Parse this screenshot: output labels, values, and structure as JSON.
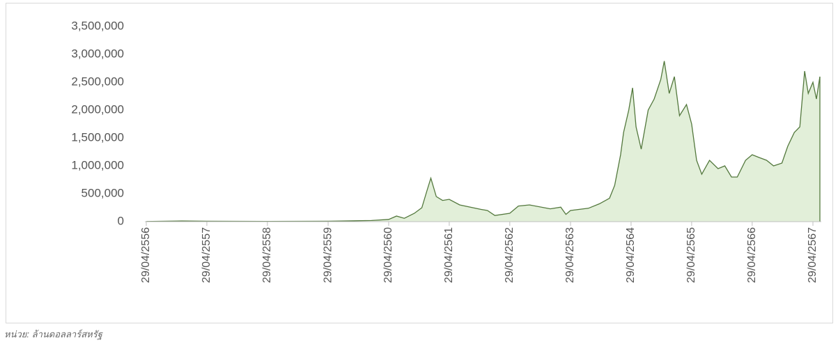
{
  "chart_data": {
    "type": "area",
    "note": "หน่วย: ล้านดอลลาร์สหรัฐ",
    "x": [
      "29/04/2556",
      "29/11/2556",
      "29/04/2557",
      "29/04/2558",
      "29/04/2559",
      "15/01/2560",
      "29/04/2560",
      "15/06/2560",
      "01/08/2560",
      "01/10/2560",
      "15/11/2560",
      "15/12/2560",
      "08/01/2561",
      "10/02/2561",
      "20/03/2561",
      "29/04/2561",
      "01/07/2561",
      "05/11/2561",
      "15/12/2561",
      "29/01/2562",
      "29/04/2562",
      "20/06/2562",
      "25/08/2562",
      "29/12/2562",
      "01/03/2563",
      "01/04/2563",
      "29/04/2563",
      "15/08/2563",
      "20/10/2563",
      "20/12/2563",
      "20/01/2564",
      "25/02/2564",
      "15/03/2564",
      "15/04/2564",
      "08/05/2564",
      "29/05/2564",
      "29/06/2564",
      "10/08/2564",
      "15/09/2564",
      "25/10/2564",
      "15/11/2564",
      "15/12/2564",
      "15/01/2565",
      "15/02/2565",
      "29/03/2565",
      "29/04/2565",
      "29/05/2565",
      "29/06/2565",
      "15/08/2565",
      "05/10/2565",
      "15/11/2565",
      "25/12/2565",
      "29/01/2566",
      "20/03/2566",
      "29/04/2566",
      "10/06/2566",
      "25/07/2566",
      "05/09/2566",
      "25/10/2566",
      "29/11/2566",
      "08/01/2567",
      "10/02/2567",
      "10/03/2567",
      "01/04/2567",
      "29/04/2567",
      "20/05/2567",
      "10/06/2567"
    ],
    "values": [
      2000,
      12000,
      8000,
      4000,
      8000,
      20000,
      40000,
      100000,
      60000,
      150000,
      250000,
      550000,
      780000,
      450000,
      380000,
      400000,
      300000,
      220000,
      200000,
      110000,
      150000,
      280000,
      300000,
      230000,
      260000,
      130000,
      200000,
      240000,
      320000,
      420000,
      650000,
      1200000,
      1600000,
      2000000,
      2400000,
      1700000,
      1300000,
      2000000,
      2200000,
      2550000,
      2880000,
      2300000,
      2600000,
      1900000,
      2100000,
      1750000,
      1100000,
      850000,
      1100000,
      950000,
      1000000,
      800000,
      800000,
      1100000,
      1200000,
      1150000,
      1100000,
      1000000,
      1050000,
      1350000,
      1600000,
      1700000,
      2700000,
      2300000,
      2500000,
      2200000,
      2600000
    ],
    "color": "#53783d",
    "fill": "#e2efd9",
    "xlim": [
      "29/04/2556",
      "10/06/2567"
    ],
    "xticks": [
      "29/04/2556",
      "29/04/2557",
      "29/04/2558",
      "29/04/2559",
      "29/04/2560",
      "29/04/2561",
      "29/04/2562",
      "29/04/2563",
      "29/04/2564",
      "29/04/2565",
      "29/04/2566",
      "29/04/2567"
    ],
    "ylim": [
      0,
      3500000
    ],
    "yticks": [
      0,
      {
        "value": 500000,
        "label": "500,000"
      },
      {
        "value": 1000000,
        "label": "1,000,000"
      },
      {
        "value": 1500000,
        "label": "1,500,000"
      },
      {
        "value": 2000000,
        "label": "2,000,000"
      },
      {
        "value": 2500000,
        "label": "2,500,000"
      },
      {
        "value": 3000000,
        "label": "3,000,000"
      },
      {
        "value": 3500000,
        "label": "3,500,000"
      }
    ]
  }
}
